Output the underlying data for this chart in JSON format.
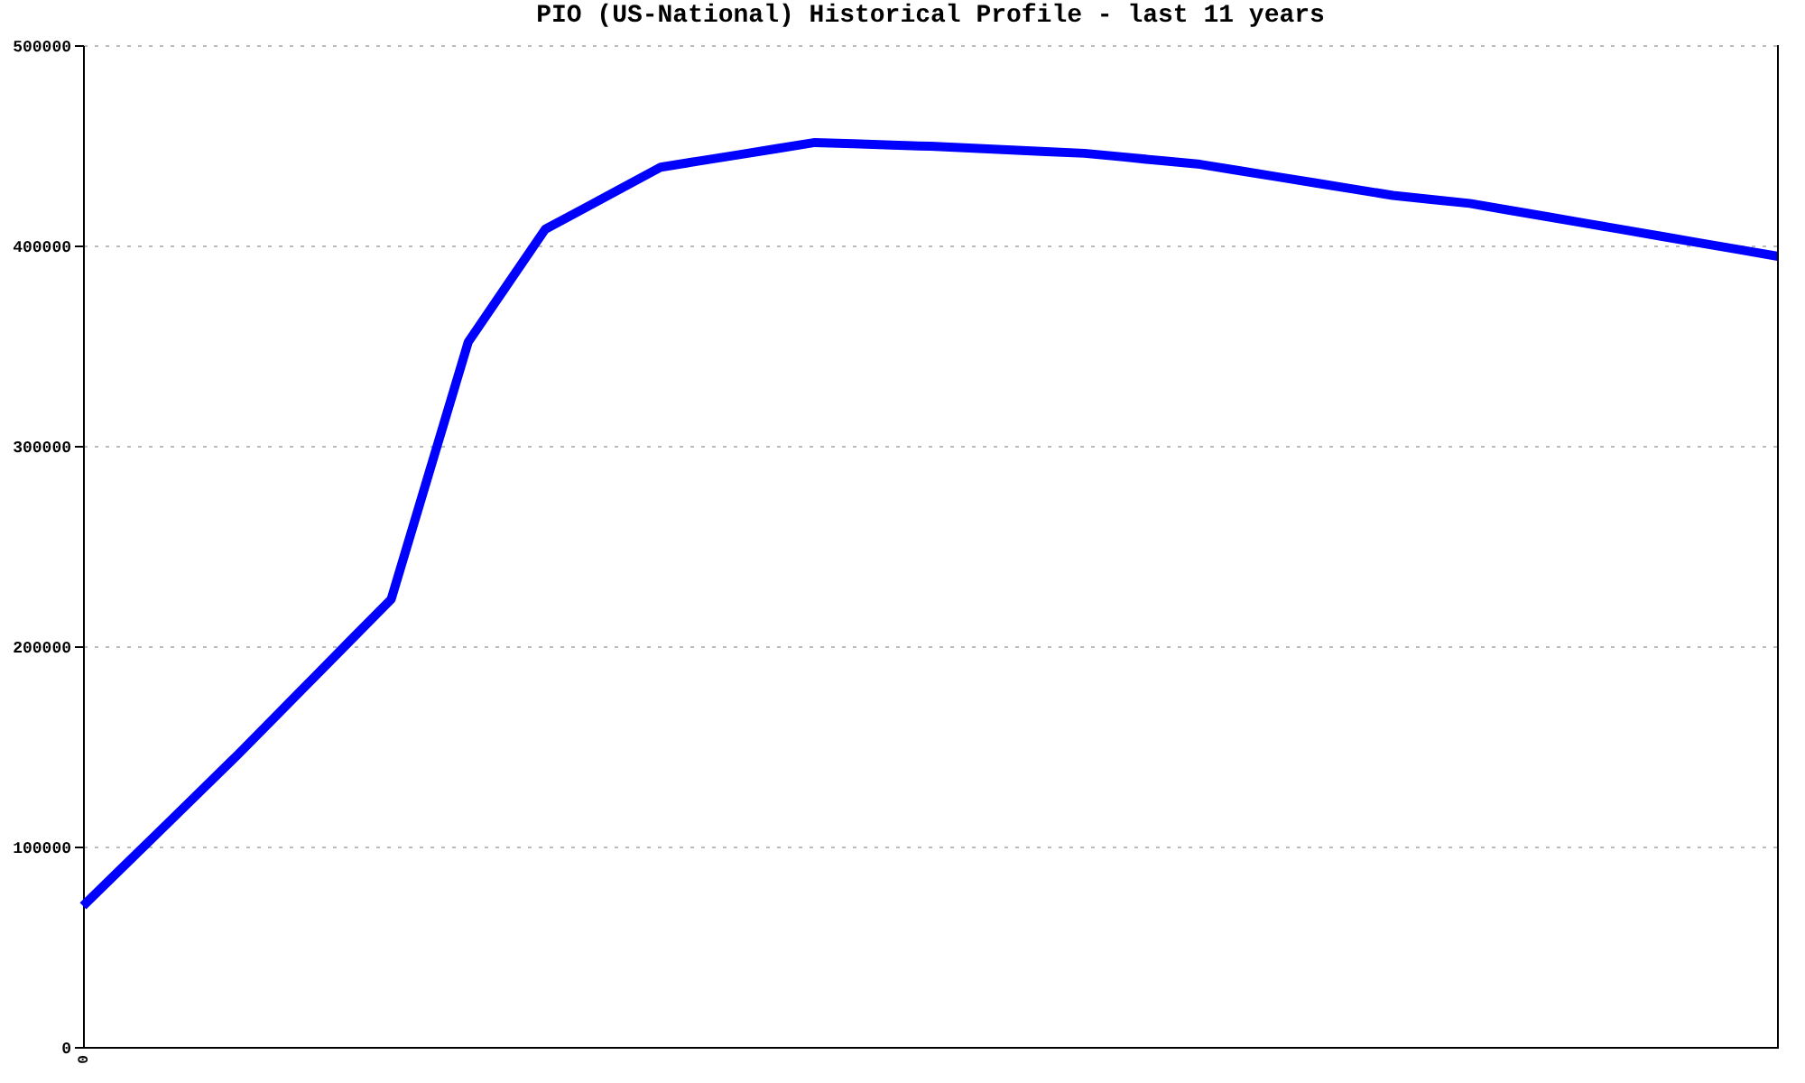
{
  "chart_data": {
    "type": "line",
    "title": "PIO (US-National) Historical Profile - last 11 years",
    "categories": [
      "0",
      null,
      null,
      null,
      null,
      null,
      null,
      null,
      null,
      null,
      null,
      null,
      null,
      null,
      null,
      null,
      null,
      null,
      null,
      null,
      null,
      null,
      null,
      null,
      null,
      null,
      null,
      null,
      null,
      null,
      null,
      null,
      null,
      null,
      null,
      null,
      null,
      null,
      null,
      null,
      null,
      null,
      null,
      null,
      null
    ],
    "series": [
      {
        "color": "#0000ff",
        "values": [
          70300,
          89100,
          107900,
          126700,
          145500,
          165000,
          184500,
          204000,
          223400,
          287600,
          351800,
          380000,
          408100,
          418400,
          428800,
          439100,
          442200,
          445200,
          448300,
          451400,
          450800,
          450100,
          449500,
          448600,
          447800,
          446900,
          446000,
          444200,
          442300,
          440500,
          437400,
          434300,
          431200,
          428100,
          425000,
          423000,
          421000,
          417700,
          414400,
          411100,
          407800,
          404500,
          401200,
          397900,
          394600
        ]
      }
    ],
    "ylim": [
      0,
      500000
    ],
    "yticks": [
      0,
      100000,
      200000,
      300000,
      400000,
      500000
    ],
    "grid": "y",
    "legend": false,
    "marker": "none",
    "line_style": "solid"
  }
}
